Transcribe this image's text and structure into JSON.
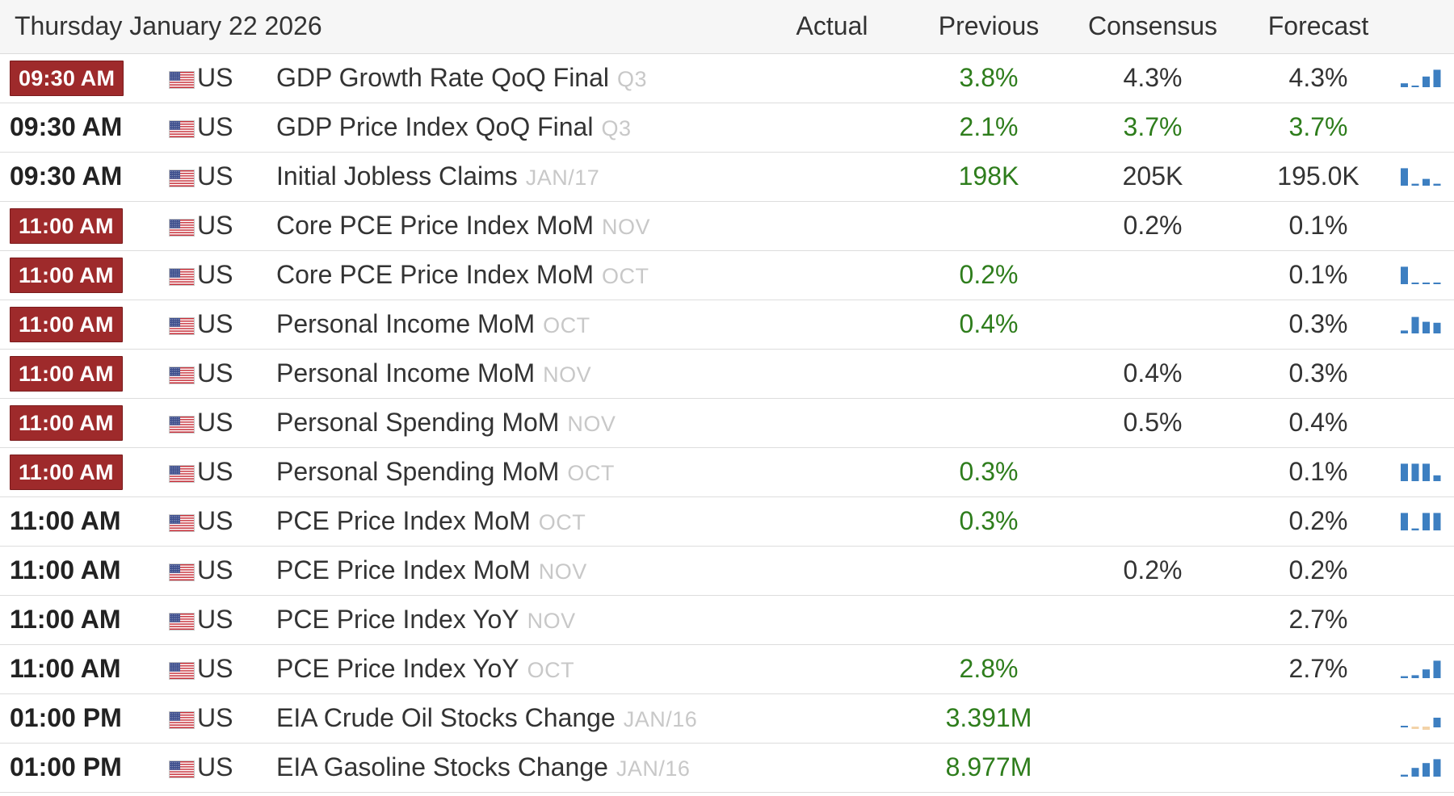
{
  "header": {
    "date": "Thursday January 22 2026",
    "actual": "Actual",
    "previous": "Previous",
    "consensus": "Consensus",
    "forecast": "Forecast"
  },
  "colors": {
    "badge_red": "#9e2a2b",
    "value_green": "#2e7d1c",
    "spark_blue": "#3d7fc1",
    "spark_tan": "#f3d3a8"
  },
  "rows": [
    {
      "time": "09:30 AM",
      "highlight": true,
      "country": "US",
      "event": "GDP Growth Rate QoQ Final",
      "ref": "Q3",
      "actual": "",
      "previous": "3.8%",
      "previous_green": true,
      "consensus": "4.3%",
      "consensus_green": false,
      "forecast": "4.3%",
      "forecast_green": false,
      "spark": [
        0.2,
        0,
        0.55,
        0.9
      ],
      "spark_pos": [
        true,
        true,
        true,
        true
      ]
    },
    {
      "time": "09:30 AM",
      "highlight": false,
      "country": "US",
      "event": "GDP Price Index QoQ Final",
      "ref": "Q3",
      "actual": "",
      "previous": "2.1%",
      "previous_green": true,
      "consensus": "3.7%",
      "consensus_green": true,
      "forecast": "3.7%",
      "forecast_green": true,
      "spark": [],
      "spark_pos": []
    },
    {
      "time": "09:30 AM",
      "highlight": false,
      "country": "US",
      "event": "Initial Jobless Claims",
      "ref": "JAN/17",
      "actual": "",
      "previous": "198K",
      "previous_green": true,
      "consensus": "205K",
      "consensus_green": false,
      "forecast": "195.0K",
      "forecast_green": false,
      "spark": [
        0.9,
        0.1,
        0.35,
        0.1
      ],
      "spark_pos": [
        true,
        true,
        true,
        true
      ]
    },
    {
      "time": "11:00 AM",
      "highlight": true,
      "country": "US",
      "event": "Core PCE Price Index MoM",
      "ref": "NOV",
      "actual": "",
      "previous": "",
      "previous_green": false,
      "consensus": "0.2%",
      "consensus_green": false,
      "forecast": "0.1%",
      "forecast_green": false,
      "spark": [],
      "spark_pos": []
    },
    {
      "time": "11:00 AM",
      "highlight": true,
      "country": "US",
      "event": "Core PCE Price Index MoM",
      "ref": "OCT",
      "actual": "",
      "previous": "0.2%",
      "previous_green": true,
      "consensus": "",
      "consensus_green": false,
      "forecast": "0.1%",
      "forecast_green": false,
      "spark": [
        0.9,
        0.05,
        0.05,
        0.05
      ],
      "spark_pos": [
        true,
        true,
        true,
        true
      ]
    },
    {
      "time": "11:00 AM",
      "highlight": true,
      "country": "US",
      "event": "Personal Income MoM",
      "ref": "OCT",
      "actual": "",
      "previous": "0.4%",
      "previous_green": true,
      "consensus": "",
      "consensus_green": false,
      "forecast": "0.3%",
      "forecast_green": false,
      "spark": [
        0.15,
        0.85,
        0.6,
        0.55
      ],
      "spark_pos": [
        true,
        true,
        true,
        true
      ]
    },
    {
      "time": "11:00 AM",
      "highlight": true,
      "country": "US",
      "event": "Personal Income MoM",
      "ref": "NOV",
      "actual": "",
      "previous": "",
      "previous_green": false,
      "consensus": "0.4%",
      "consensus_green": false,
      "forecast": "0.3%",
      "forecast_green": false,
      "spark": [],
      "spark_pos": []
    },
    {
      "time": "11:00 AM",
      "highlight": true,
      "country": "US",
      "event": "Personal Spending MoM",
      "ref": "NOV",
      "actual": "",
      "previous": "",
      "previous_green": false,
      "consensus": "0.5%",
      "consensus_green": false,
      "forecast": "0.4%",
      "forecast_green": false,
      "spark": [],
      "spark_pos": []
    },
    {
      "time": "11:00 AM",
      "highlight": true,
      "country": "US",
      "event": "Personal Spending MoM",
      "ref": "OCT",
      "actual": "",
      "previous": "0.3%",
      "previous_green": true,
      "consensus": "",
      "consensus_green": false,
      "forecast": "0.1%",
      "forecast_green": false,
      "spark": [
        0.9,
        0.9,
        0.9,
        0.3
      ],
      "spark_pos": [
        true,
        true,
        true,
        true
      ]
    },
    {
      "time": "11:00 AM",
      "highlight": false,
      "country": "US",
      "event": "PCE Price Index MoM",
      "ref": "OCT",
      "actual": "",
      "previous": "0.3%",
      "previous_green": true,
      "consensus": "",
      "consensus_green": false,
      "forecast": "0.2%",
      "forecast_green": false,
      "spark": [
        0.9,
        0.1,
        0.9,
        0.9
      ],
      "spark_pos": [
        true,
        true,
        true,
        true
      ]
    },
    {
      "time": "11:00 AM",
      "highlight": false,
      "country": "US",
      "event": "PCE Price Index MoM",
      "ref": "NOV",
      "actual": "",
      "previous": "",
      "previous_green": false,
      "consensus": "0.2%",
      "consensus_green": false,
      "forecast": "0.2%",
      "forecast_green": false,
      "spark": [],
      "spark_pos": []
    },
    {
      "time": "11:00 AM",
      "highlight": false,
      "country": "US",
      "event": "PCE Price Index YoY",
      "ref": "NOV",
      "actual": "",
      "previous": "",
      "previous_green": false,
      "consensus": "",
      "consensus_green": false,
      "forecast": "2.7%",
      "forecast_green": false,
      "spark": [],
      "spark_pos": []
    },
    {
      "time": "11:00 AM",
      "highlight": false,
      "country": "US",
      "event": "PCE Price Index YoY",
      "ref": "OCT",
      "actual": "",
      "previous": "2.8%",
      "previous_green": true,
      "consensus": "",
      "consensus_green": false,
      "forecast": "2.7%",
      "forecast_green": false,
      "spark": [
        0.1,
        0.15,
        0.45,
        0.9
      ],
      "spark_pos": [
        true,
        true,
        true,
        true
      ]
    },
    {
      "time": "01:00 PM",
      "highlight": false,
      "country": "US",
      "event": "EIA Crude Oil Stocks Change",
      "ref": "JAN/16",
      "actual": "",
      "previous": "3.391M",
      "previous_green": true,
      "consensus": "",
      "consensus_green": false,
      "forecast": "",
      "forecast_green": false,
      "spark": [
        0.05,
        0.25,
        0.45,
        0.5
      ],
      "spark_pos": [
        true,
        false,
        false,
        true
      ]
    },
    {
      "time": "01:00 PM",
      "highlight": false,
      "country": "US",
      "event": "EIA Gasoline Stocks Change",
      "ref": "JAN/16",
      "actual": "",
      "previous": "8.977M",
      "previous_green": true,
      "consensus": "",
      "consensus_green": false,
      "forecast": "",
      "forecast_green": false,
      "spark": [
        0.1,
        0.45,
        0.7,
        0.9
      ],
      "spark_pos": [
        true,
        true,
        true,
        true
      ]
    }
  ]
}
